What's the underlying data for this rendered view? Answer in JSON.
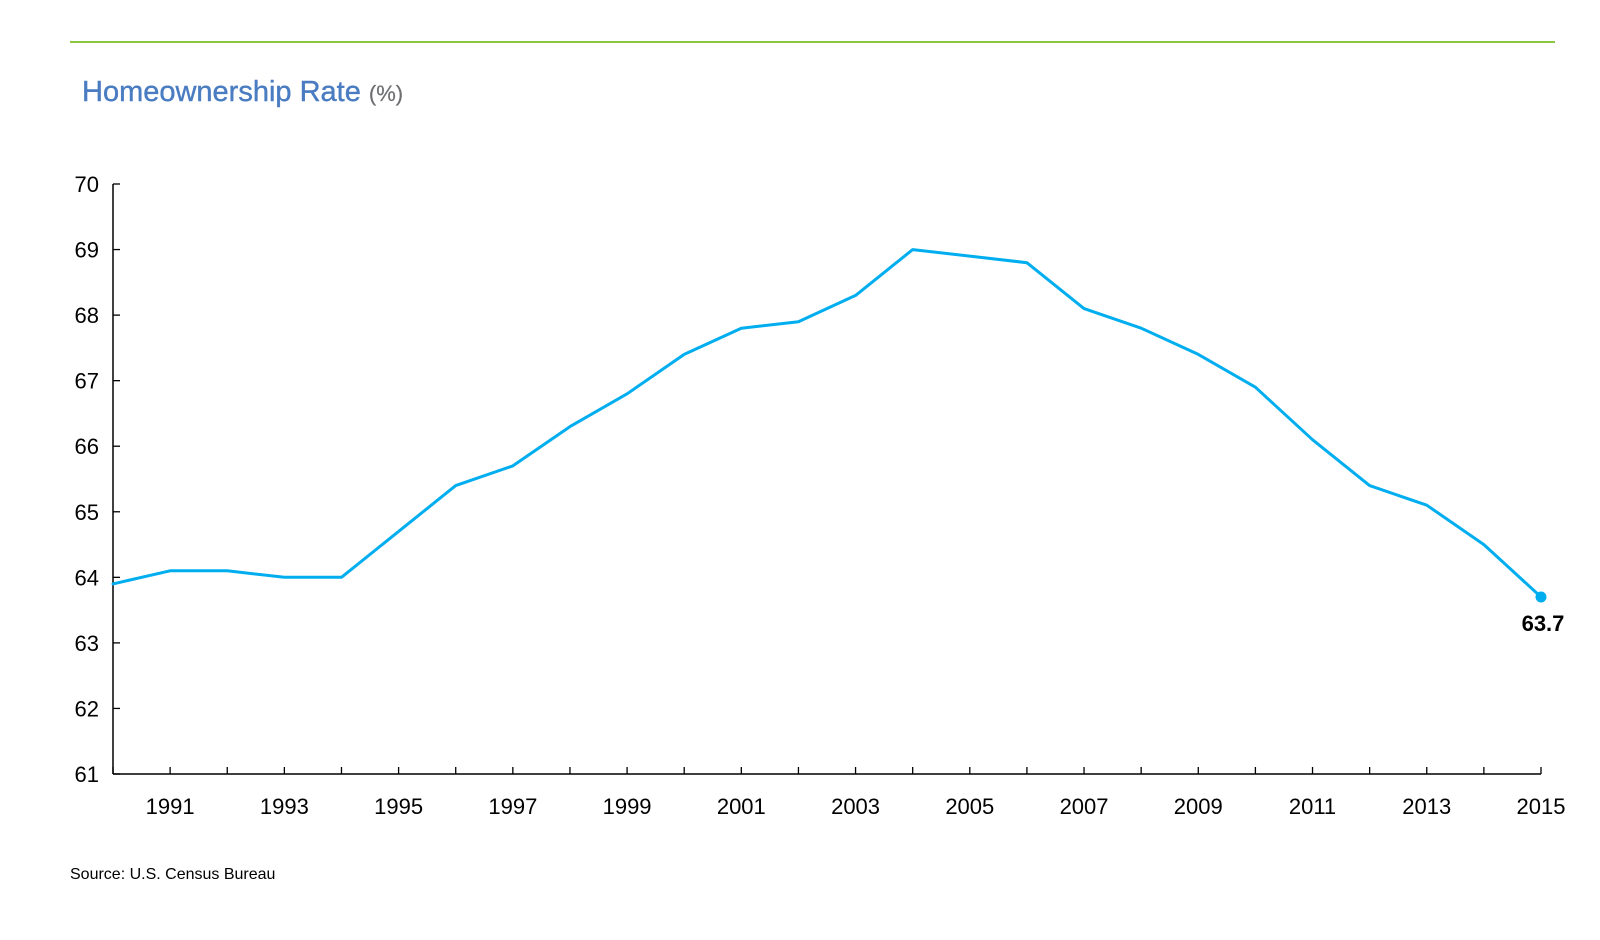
{
  "chart_data": {
    "type": "line",
    "title": "Homeownership Rate",
    "title_unit": "(%)",
    "xlabel": "",
    "ylabel": "",
    "x": [
      1990,
      1991,
      1992,
      1993,
      1994,
      1995,
      1996,
      1997,
      1998,
      1999,
      2000,
      2001,
      2002,
      2003,
      2004,
      2005,
      2006,
      2007,
      2008,
      2009,
      2010,
      2011,
      2012,
      2013,
      2014,
      2015
    ],
    "series": [
      {
        "values": [
          63.9,
          64.1,
          64.1,
          64.0,
          64.0,
          64.7,
          65.4,
          65.7,
          66.3,
          66.8,
          67.4,
          67.8,
          67.9,
          68.3,
          69.0,
          68.9,
          68.8,
          68.1,
          67.8,
          67.4,
          66.9,
          66.1,
          65.4,
          65.1,
          64.5,
          63.7
        ],
        "color": "#00aeef"
      }
    ],
    "xlim": [
      1990,
      2015
    ],
    "ylim": [
      61,
      70
    ],
    "y_ticks": [
      "61",
      "62",
      "63",
      "64",
      "65",
      "66",
      "67",
      "68",
      "69",
      "70"
    ],
    "x_tick_labels": [
      "1991",
      "1993",
      "1995",
      "1997",
      "1999",
      "2001",
      "2003",
      "2005",
      "2007",
      "2009",
      "2011",
      "2013",
      "2015"
    ],
    "end_label": "63.7",
    "grid": false,
    "legend": "none"
  },
  "source": "Source: U.S. Census Bureau",
  "colors": {
    "accent_rule": "#8cc63f",
    "title": "#4a7cc1",
    "title_unit": "#6d6e71",
    "line": "#00aeef"
  }
}
